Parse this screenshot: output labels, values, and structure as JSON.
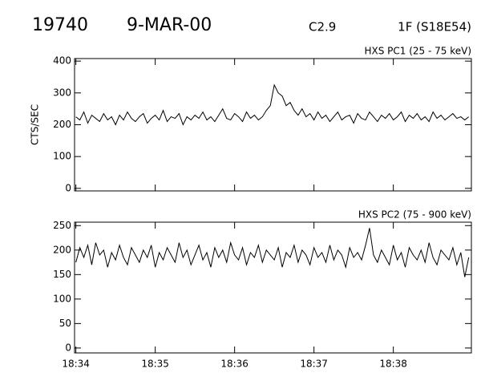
{
  "header": {
    "number": "19740",
    "date": "9-MAR-00",
    "class": "C2.9",
    "location": "1F (S18E54)"
  },
  "chart_data": [
    {
      "type": "line",
      "title": "HXS PC1 (25 - 75 keV)",
      "y_label": "CTS/SEC",
      "xlim": [
        -1,
        299
      ],
      "ylim": [
        -8,
        408
      ],
      "yticks": [
        0,
        100,
        200,
        300,
        400
      ],
      "xticks": [
        {
          "value": 0,
          "label": "18:34"
        },
        {
          "value": 60,
          "label": "18:35"
        },
        {
          "value": 120,
          "label": "18:36"
        },
        {
          "value": 180,
          "label": "18:37"
        },
        {
          "value": 240,
          "label": "18:38"
        }
      ],
      "x": [
        0,
        3,
        6,
        9,
        12,
        15,
        18,
        21,
        24,
        27,
        30,
        33,
        36,
        39,
        42,
        45,
        48,
        51,
        54,
        57,
        60,
        63,
        66,
        69,
        72,
        75,
        78,
        81,
        84,
        87,
        90,
        93,
        96,
        99,
        102,
        105,
        108,
        111,
        114,
        117,
        120,
        123,
        126,
        129,
        132,
        135,
        138,
        141,
        144,
        147,
        150,
        153,
        156,
        159,
        162,
        165,
        168,
        171,
        174,
        177,
        180,
        183,
        186,
        189,
        192,
        195,
        198,
        201,
        204,
        207,
        210,
        213,
        216,
        219,
        222,
        225,
        228,
        231,
        234,
        237,
        240,
        243,
        246,
        249,
        252,
        255,
        258,
        261,
        264,
        267,
        270,
        273,
        276,
        279,
        282,
        285,
        288,
        291,
        294,
        297
      ],
      "series": [
        {
          "color": "#000000",
          "values": [
            225,
            215,
            240,
            205,
            230,
            220,
            210,
            235,
            215,
            225,
            200,
            230,
            215,
            240,
            220,
            210,
            225,
            235,
            205,
            220,
            230,
            215,
            245,
            210,
            225,
            220,
            235,
            200,
            225,
            215,
            230,
            220,
            240,
            215,
            225,
            210,
            230,
            250,
            220,
            215,
            235,
            225,
            210,
            240,
            220,
            230,
            215,
            225,
            245,
            260,
            325,
            300,
            290,
            260,
            270,
            245,
            230,
            250,
            225,
            235,
            215,
            240,
            220,
            230,
            210,
            225,
            240,
            215,
            225,
            230,
            205,
            235,
            220,
            215,
            240,
            225,
            210,
            230,
            220,
            235,
            215,
            225,
            240,
            210,
            230,
            220,
            235,
            215,
            225,
            210,
            240,
            220,
            230,
            215,
            225,
            235,
            220,
            225,
            215,
            225
          ]
        }
      ]
    },
    {
      "type": "line",
      "title": "HXS PC2 (75 - 900 keV)",
      "xlim": [
        -1,
        299
      ],
      "ylim": [
        -10,
        257
      ],
      "yticks": [
        0,
        50,
        100,
        150,
        200,
        250
      ],
      "xticks": [
        {
          "value": 0,
          "label": "18:34"
        },
        {
          "value": 60,
          "label": "18:35"
        },
        {
          "value": 120,
          "label": "18:36"
        },
        {
          "value": 180,
          "label": "18:37"
        },
        {
          "value": 240,
          "label": "18:38"
        }
      ],
      "x": [
        0,
        3,
        6,
        9,
        12,
        15,
        18,
        21,
        24,
        27,
        30,
        33,
        36,
        39,
        42,
        45,
        48,
        51,
        54,
        57,
        60,
        63,
        66,
        69,
        72,
        75,
        78,
        81,
        84,
        87,
        90,
        93,
        96,
        99,
        102,
        105,
        108,
        111,
        114,
        117,
        120,
        123,
        126,
        129,
        132,
        135,
        138,
        141,
        144,
        147,
        150,
        153,
        156,
        159,
        162,
        165,
        168,
        171,
        174,
        177,
        180,
        183,
        186,
        189,
        192,
        195,
        198,
        201,
        204,
        207,
        210,
        213,
        216,
        219,
        222,
        225,
        228,
        231,
        234,
        237,
        240,
        243,
        246,
        249,
        252,
        255,
        258,
        261,
        264,
        267,
        270,
        273,
        276,
        279,
        282,
        285,
        288,
        291,
        294,
        297
      ],
      "series": [
        {
          "color": "#000000",
          "values": [
            175,
            205,
            185,
            210,
            170,
            215,
            190,
            200,
            165,
            195,
            180,
            210,
            185,
            170,
            205,
            190,
            175,
            200,
            185,
            210,
            165,
            195,
            180,
            205,
            190,
            175,
            215,
            185,
            200,
            170,
            190,
            210,
            180,
            195,
            165,
            205,
            185,
            200,
            175,
            215,
            190,
            180,
            205,
            170,
            195,
            185,
            210,
            175,
            200,
            190,
            180,
            205,
            165,
            195,
            185,
            210,
            175,
            200,
            190,
            170,
            205,
            185,
            195,
            175,
            210,
            180,
            200,
            190,
            165,
            205,
            185,
            195,
            180,
            210,
            245,
            190,
            175,
            200,
            185,
            170,
            210,
            180,
            195,
            165,
            205,
            190,
            180,
            200,
            175,
            215,
            185,
            170,
            200,
            190,
            180,
            205,
            170,
            195,
            145,
            185
          ]
        }
      ]
    }
  ]
}
